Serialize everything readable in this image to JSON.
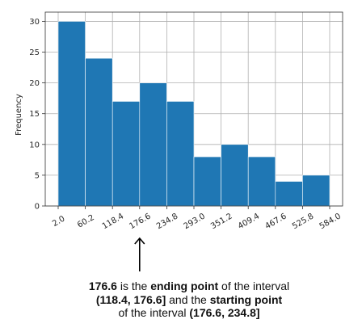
{
  "chart_data": {
    "type": "bar",
    "subtype": "histogram",
    "bin_edges": [
      2.0,
      60.2,
      118.4,
      176.6,
      234.8,
      293.0,
      351.2,
      409.4,
      467.6,
      525.8,
      584.0
    ],
    "bin_edge_labels": [
      "2.0",
      "60.2",
      "118.4",
      "176.6",
      "234.8",
      "293.0",
      "351.2",
      "409.4",
      "467.6",
      "525.8",
      "584.0"
    ],
    "values": [
      30,
      24,
      17,
      20,
      17,
      8,
      10,
      8,
      4,
      5
    ],
    "ylabel": "Frequency",
    "xlabel": "",
    "title": "",
    "ylim": [
      0,
      31.5
    ],
    "yticks": [
      0,
      5,
      10,
      15,
      20,
      25,
      30
    ],
    "grid": true,
    "bar_color": "#1f77b4",
    "x_tick_rotation": -30
  },
  "annotation": {
    "line1": [
      "176.6",
      " is the ",
      "ending point",
      " of the interval"
    ],
    "line2": [
      "(118.4, 176.6]",
      " and the ",
      "starting point"
    ],
    "line3": [
      "of the interval ",
      "(176.6, 234.8]"
    ],
    "pointer_value": 176.6
  }
}
